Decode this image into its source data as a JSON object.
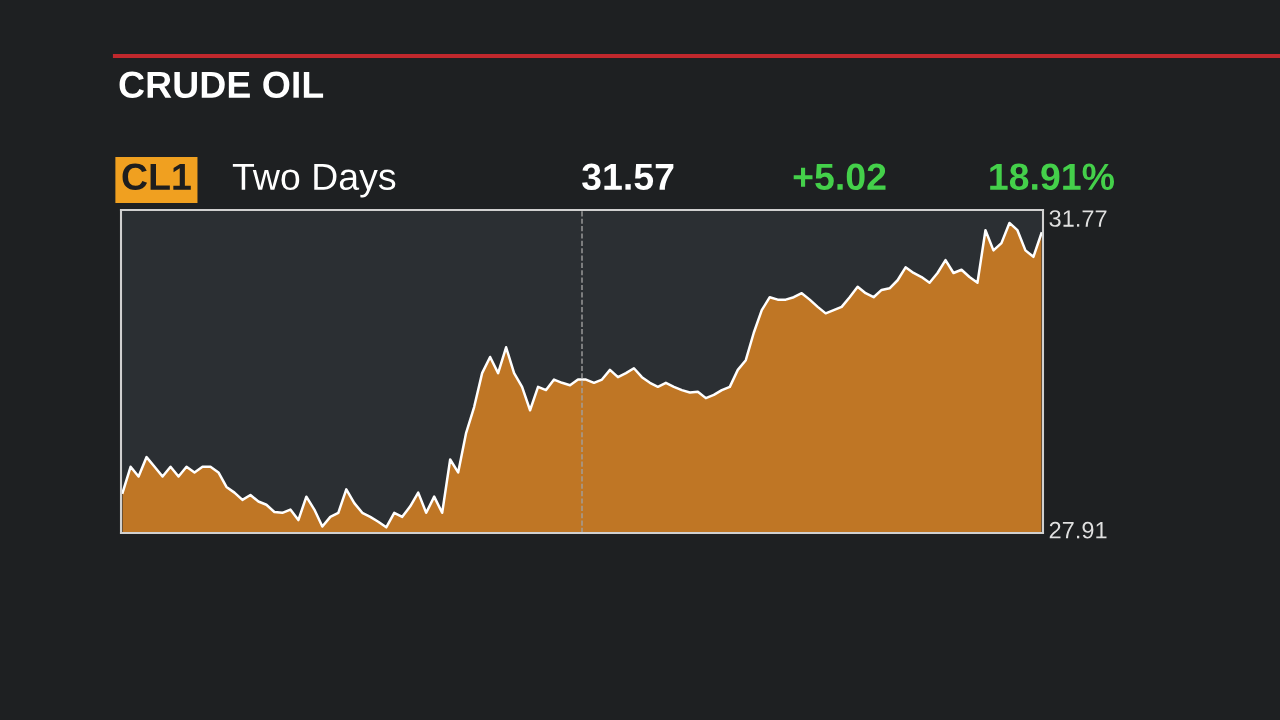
{
  "chart_data": {
    "type": "area",
    "title": "CRUDE OIL",
    "annotations": [
      "CL1",
      "Two Days",
      "31.57",
      "+5.02",
      "18.91%"
    ],
    "categories": [
      null,
      null,
      null,
      null,
      null,
      null,
      null,
      null,
      null,
      null,
      null,
      null,
      null,
      null,
      null,
      null,
      null,
      null,
      null,
      null,
      null,
      null,
      null,
      null,
      null,
      null,
      null,
      null,
      null,
      null,
      null,
      null,
      null,
      null,
      null,
      null,
      null,
      null,
      null,
      null,
      null,
      null,
      null,
      null,
      null,
      null,
      null,
      null,
      null,
      null,
      null,
      null,
      null,
      null,
      null,
      null,
      null,
      null,
      null,
      null,
      null,
      null,
      null,
      null,
      null,
      null,
      null,
      null,
      null,
      null,
      null,
      null,
      null,
      null,
      null,
      null,
      null,
      null,
      null,
      null,
      null,
      null,
      null,
      null,
      null,
      null,
      null,
      null,
      null,
      null,
      null,
      null,
      null,
      null,
      null,
      null,
      null,
      null,
      null,
      null,
      null,
      null,
      null,
      null,
      null,
      null,
      null,
      null,
      null,
      null,
      null,
      null,
      null,
      null,
      null,
      null
    ],
    "series": [
      {
        "color": "#d98323",
        "values": [
          28.37,
          28.69,
          28.57,
          28.81,
          28.69,
          28.57,
          28.69,
          28.57,
          28.69,
          28.62,
          28.69,
          28.69,
          28.62,
          28.44,
          28.37,
          28.28,
          28.34,
          28.26,
          28.22,
          28.13,
          28.12,
          28.16,
          28.03,
          28.32,
          28.16,
          27.95,
          28.07,
          28.12,
          28.41,
          28.24,
          28.12,
          28.07,
          28.01,
          27.94,
          28.12,
          28.07,
          28.2,
          28.37,
          28.12,
          28.32,
          28.12,
          28.78,
          28.62,
          29.11,
          29.43,
          29.85,
          30.05,
          29.85,
          30.17,
          29.85,
          29.68,
          29.39,
          29.68,
          29.64,
          29.77,
          29.73,
          29.7,
          29.77,
          29.77,
          29.73,
          29.77,
          29.89,
          29.8,
          29.85,
          29.91,
          29.8,
          29.73,
          29.68,
          29.73,
          29.68,
          29.64,
          29.61,
          29.62,
          29.54,
          29.58,
          29.64,
          29.68,
          29.89,
          30.01,
          30.35,
          30.63,
          30.79,
          30.76,
          30.76,
          30.79,
          30.84,
          30.76,
          30.67,
          30.59,
          30.63,
          30.67,
          30.79,
          30.92,
          30.84,
          30.79,
          30.88,
          30.9,
          31.0,
          31.16,
          31.09,
          31.04,
          30.97,
          31.09,
          31.25,
          31.09,
          31.13,
          31.04,
          30.97,
          31.62,
          31.37,
          31.46,
          31.71,
          31.62,
          31.37,
          31.29,
          31.58
        ]
      }
    ],
    "ylim": [
      27.87,
      31.87
    ],
    "yticks": [
      27.91,
      31.77
    ],
    "tick_labels": "y",
    "grid": false,
    "legend": false
  }
}
